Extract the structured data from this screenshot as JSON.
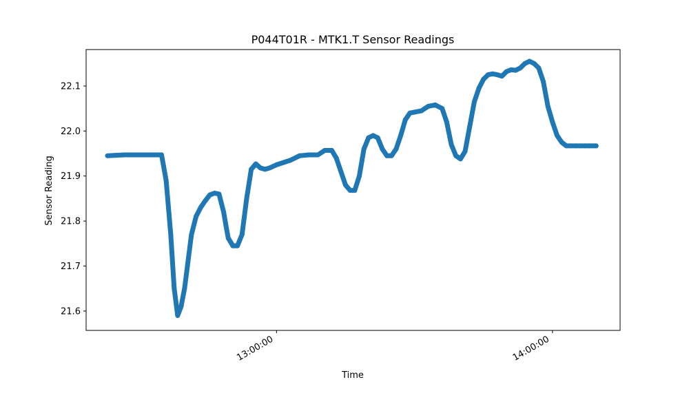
{
  "chart_data": {
    "type": "scatter",
    "title": "P044T01R - MTK1.T Sensor Readings",
    "xlabel": "Time",
    "ylabel": "Sensor Reading",
    "x_tick_labels": [
      "13:00:00",
      "14:00:00"
    ],
    "x_tick_values": [
      "13:00:00",
      "14:00:00"
    ],
    "y_tick_labels": [
      "21.6",
      "21.7",
      "21.8",
      "21.9",
      "22.0",
      "22.1"
    ],
    "y_tick_values": [
      21.6,
      21.7,
      21.8,
      21.9,
      22.0,
      22.1
    ],
    "xlim": [
      "12:18:36",
      "14:14:42"
    ],
    "ylim": [
      21.557,
      22.181
    ],
    "grid": false,
    "legend": "none",
    "color": "#1f77b4",
    "series": [
      {
        "x": [
          "12:23:15",
          "12:25:00",
          "12:27:00",
          "12:30:00",
          "12:33:00",
          "12:35:00",
          "12:36:00",
          "12:37:00",
          "12:37:45",
          "12:38:30",
          "12:39:15",
          "12:40:00",
          "12:40:45",
          "12:41:30",
          "12:42:30",
          "12:43:30",
          "12:44:30",
          "12:45:30",
          "12:46:30",
          "12:47:30",
          "12:48:30",
          "12:49:00",
          "12:49:30",
          "12:50:30",
          "12:51:30",
          "12:52:30",
          "12:53:30",
          "12:54:30",
          "12:55:30",
          "12:56:30",
          "12:57:30",
          "12:58:30",
          "13:00:00",
          "13:01:30",
          "13:03:00",
          "13:05:00",
          "13:07:00",
          "13:09:00",
          "13:10:30",
          "13:12:00",
          "13:13:00",
          "13:14:00",
          "13:15:00",
          "13:16:00",
          "13:17:00",
          "13:18:00",
          "13:19:00",
          "13:20:00",
          "13:21:00",
          "13:22:00",
          "13:23:00",
          "13:24:00",
          "13:25:00",
          "13:26:00",
          "13:27:00",
          "13:28:00",
          "13:29:00",
          "13:30:00",
          "13:31:30",
          "13:33:00",
          "13:34:30",
          "13:36:00",
          "13:37:00",
          "13:38:00",
          "13:39:00",
          "13:40:00",
          "13:41:00",
          "13:42:00",
          "13:43:00",
          "13:44:00",
          "13:45:00",
          "13:46:00",
          "13:47:00",
          "13:48:00",
          "13:49:00",
          "13:50:00",
          "13:51:00",
          "13:52:00",
          "13:53:00",
          "13:54:00",
          "13:55:00",
          "13:56:00",
          "13:57:00",
          "13:58:00",
          "13:59:00",
          "14:00:00",
          "14:01:00",
          "14:02:00",
          "14:03:00",
          "14:04:00",
          "14:05:00",
          "14:06:00",
          "14:07:00",
          "14:08:00",
          "14:09:30"
        ],
        "y": [
          21.945,
          21.946,
          21.947,
          21.947,
          21.947,
          21.947,
          21.89,
          21.77,
          21.65,
          21.59,
          21.61,
          21.65,
          21.71,
          21.77,
          21.81,
          21.83,
          21.845,
          21.858,
          21.862,
          21.86,
          21.82,
          21.79,
          21.762,
          21.745,
          21.745,
          21.77,
          21.85,
          21.915,
          21.927,
          21.918,
          21.915,
          21.918,
          21.925,
          21.93,
          21.935,
          21.945,
          21.947,
          21.947,
          21.957,
          21.957,
          21.94,
          21.91,
          21.88,
          21.868,
          21.868,
          21.9,
          21.96,
          21.985,
          21.99,
          21.985,
          21.96,
          21.945,
          21.945,
          21.96,
          21.99,
          22.025,
          22.04,
          22.042,
          22.045,
          22.055,
          22.058,
          22.05,
          22.02,
          21.97,
          21.945,
          21.938,
          21.955,
          22.01,
          22.065,
          22.095,
          22.115,
          22.125,
          22.127,
          22.125,
          22.122,
          22.132,
          22.136,
          22.135,
          22.14,
          22.15,
          22.155,
          22.15,
          22.14,
          22.11,
          22.055,
          22.02,
          21.99,
          21.975,
          21.967,
          21.967,
          21.967,
          21.967,
          21.967,
          21.967,
          21.967
        ]
      }
    ]
  }
}
